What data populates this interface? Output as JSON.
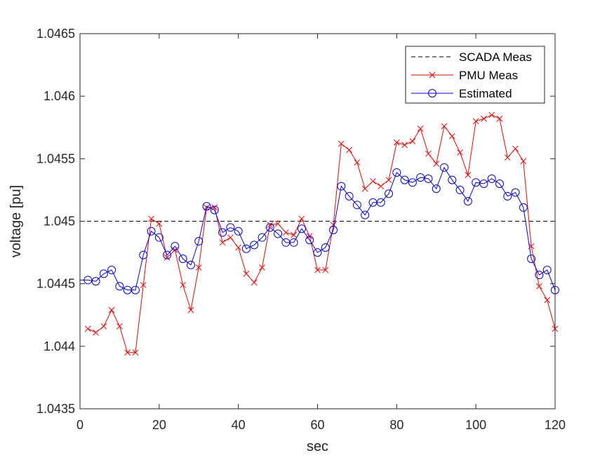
{
  "chart_data": {
    "type": "line",
    "xlabel": "sec",
    "ylabel": "voltage [pu]",
    "xlim": [
      0,
      120
    ],
    "ylim": [
      1.0435,
      1.0465
    ],
    "xticks": [
      0,
      20,
      40,
      60,
      80,
      100,
      120
    ],
    "xtick_labels": [
      "0",
      "20",
      "40",
      "60",
      "80",
      "100",
      "120"
    ],
    "yticks": [
      1.0435,
      1.044,
      1.0445,
      1.045,
      1.0455,
      1.046,
      1.0465
    ],
    "ytick_labels": [
      "1.0435",
      "1.044",
      "1.0445",
      "1.045",
      "1.0455",
      "1.046",
      "1.0465"
    ],
    "grid": false,
    "legend_position": "top-right",
    "series": [
      {
        "name": "SCADA Meas",
        "style": "dashed",
        "color": "#000000",
        "marker": "none",
        "x": [
          0,
          120
        ],
        "y": [
          1.045,
          1.045
        ]
      },
      {
        "name": "PMU Meas",
        "style": "solid",
        "color": "#ff0000",
        "marker": "x",
        "x": [
          2,
          4,
          6,
          8,
          10,
          12,
          14,
          16,
          18,
          20,
          22,
          24,
          26,
          28,
          30,
          32,
          34,
          36,
          38,
          40,
          42,
          44,
          46,
          48,
          50,
          52,
          54,
          56,
          58,
          60,
          62,
          64,
          66,
          68,
          70,
          72,
          74,
          76,
          78,
          80,
          82,
          84,
          86,
          88,
          90,
          92,
          94,
          96,
          98,
          100,
          102,
          104,
          106,
          108,
          110,
          112,
          114,
          116,
          118,
          120
        ],
        "y": [
          1.04414,
          1.04411,
          1.04416,
          1.04429,
          1.04416,
          1.04395,
          1.04395,
          1.04449,
          1.04502,
          1.04498,
          1.04471,
          1.04477,
          1.04449,
          1.04429,
          1.04463,
          1.04511,
          1.04511,
          1.04483,
          1.04487,
          1.04479,
          1.04458,
          1.04451,
          1.04463,
          1.04497,
          1.04498,
          1.04491,
          1.04489,
          1.04502,
          1.04488,
          1.04461,
          1.04461,
          1.04497,
          1.04562,
          1.04557,
          1.04547,
          1.04526,
          1.04532,
          1.04528,
          1.04533,
          1.04563,
          1.04561,
          1.04564,
          1.04574,
          1.04554,
          1.04546,
          1.04576,
          1.04568,
          1.04555,
          1.04537,
          1.0458,
          1.04582,
          1.04585,
          1.04582,
          1.04551,
          1.04558,
          1.04548,
          1.0448,
          1.04448,
          1.04437,
          1.04414
        ]
      },
      {
        "name": "Estimated",
        "style": "solid",
        "color": "#0000ff",
        "marker": "o",
        "x": [
          2,
          4,
          6,
          8,
          10,
          12,
          14,
          16,
          18,
          20,
          22,
          24,
          26,
          28,
          30,
          32,
          34,
          36,
          38,
          40,
          42,
          44,
          46,
          48,
          50,
          52,
          54,
          56,
          58,
          60,
          62,
          64,
          66,
          68,
          70,
          72,
          74,
          76,
          78,
          80,
          82,
          84,
          86,
          88,
          90,
          92,
          94,
          96,
          98,
          100,
          102,
          104,
          106,
          108,
          110,
          112,
          114,
          116,
          118,
          120
        ],
        "y": [
          1.04453,
          1.04452,
          1.04458,
          1.04461,
          1.04448,
          1.04445,
          1.04445,
          1.04473,
          1.04492,
          1.04487,
          1.04473,
          1.0448,
          1.0447,
          1.04465,
          1.04484,
          1.04512,
          1.04509,
          1.04491,
          1.04495,
          1.04492,
          1.04478,
          1.04481,
          1.04487,
          1.04495,
          1.0449,
          1.04483,
          1.04483,
          1.04494,
          1.04485,
          1.04475,
          1.04479,
          1.04493,
          1.04528,
          1.0452,
          1.04513,
          1.04505,
          1.04515,
          1.04515,
          1.04522,
          1.04539,
          1.04533,
          1.04531,
          1.04535,
          1.04534,
          1.04526,
          1.04543,
          1.04533,
          1.04525,
          1.04516,
          1.04531,
          1.0453,
          1.04534,
          1.0453,
          1.0452,
          1.04523,
          1.04511,
          1.0447,
          1.04457,
          1.04461,
          1.04445
        ]
      }
    ]
  }
}
